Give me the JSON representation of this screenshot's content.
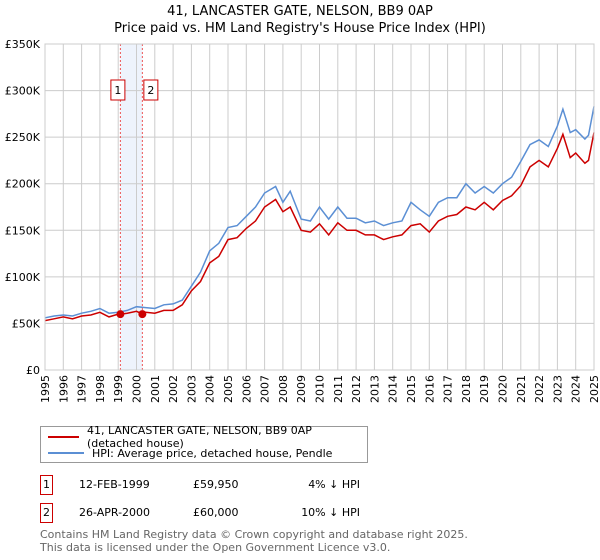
{
  "title_line1": "41, LANCASTER GATE, NELSON, BB9 0AP",
  "title_line2": "Price paid vs. HM Land Registry's House Price Index (HPI)",
  "chart_data": {
    "type": "line",
    "title": "41, LANCASTER GATE, NELSON, BB9 0AP — Price paid vs. HM Land Registry's House Price Index (HPI)",
    "xlabel": "",
    "ylabel": "",
    "xlim": [
      1995,
      2025.1
    ],
    "ylim": [
      0,
      350000
    ],
    "grid": true,
    "x_ticks": [
      "1995",
      "1996",
      "1997",
      "1998",
      "1999",
      "2000",
      "2001",
      "2002",
      "2003",
      "2004",
      "2005",
      "2006",
      "2007",
      "2008",
      "2009",
      "2010",
      "2011",
      "2012",
      "2013",
      "2014",
      "2015",
      "2016",
      "2017",
      "2018",
      "2019",
      "2020",
      "2021",
      "2022",
      "2023",
      "2024",
      "2025"
    ],
    "y_ticks": [
      "£0",
      "£50K",
      "£100K",
      "£150K",
      "£200K",
      "£250K",
      "£300K",
      "£350K"
    ],
    "y_tick_values": [
      0,
      50000,
      100000,
      150000,
      200000,
      250000,
      300000,
      350000
    ],
    "legend_position": "below",
    "series": [
      {
        "name": "41, LANCASTER GATE, NELSON, BB9 0AP (detached house)",
        "color": "#cc0000",
        "x": [
          1995,
          1995.5,
          1996,
          1996.5,
          1997,
          1997.5,
          1998,
          1998.5,
          1999,
          1999.12,
          1999.5,
          2000,
          2000.32,
          2000.5,
          2001,
          2001.5,
          2002,
          2002.5,
          2003,
          2003.5,
          2004,
          2004.5,
          2005,
          2005.5,
          2006,
          2006.5,
          2007,
          2007.6,
          2008,
          2008.4,
          2009,
          2009.5,
          2010,
          2010.5,
          2011,
          2011.5,
          2012,
          2012.5,
          2013,
          2013.5,
          2014,
          2014.5,
          2015,
          2015.5,
          2016,
          2016.5,
          2017,
          2017.5,
          2018,
          2018.5,
          2019,
          2019.5,
          2020,
          2020.5,
          2021,
          2021.5,
          2022,
          2022.5,
          2023,
          2023.3,
          2023.7,
          2024,
          2024.5,
          2024.7,
          2025
        ],
        "y": [
          53000,
          55000,
          57000,
          55000,
          58000,
          59000,
          62000,
          57000,
          60000,
          59950,
          61000,
          63000,
          60000,
          62000,
          61000,
          64000,
          64000,
          70000,
          85000,
          95000,
          115000,
          122000,
          140000,
          142000,
          152000,
          160000,
          175000,
          183000,
          170000,
          175000,
          150000,
          148000,
          157000,
          145000,
          158000,
          150000,
          150000,
          145000,
          145000,
          140000,
          143000,
          145000,
          155000,
          157000,
          148000,
          160000,
          165000,
          167000,
          175000,
          172000,
          180000,
          172000,
          182000,
          187000,
          198000,
          218000,
          225000,
          218000,
          238000,
          253000,
          228000,
          233000,
          222000,
          225000,
          255000
        ]
      },
      {
        "name": "HPI: Average price, detached house, Pendle",
        "color": "#5b8fd4",
        "x": [
          1995,
          1995.5,
          1996,
          1996.5,
          1997,
          1997.5,
          1998,
          1998.5,
          1999,
          1999.5,
          2000,
          2000.5,
          2001,
          2001.5,
          2002,
          2002.5,
          2003,
          2003.5,
          2004,
          2004.5,
          2005,
          2005.5,
          2006,
          2006.5,
          2007,
          2007.6,
          2008,
          2008.4,
          2009,
          2009.5,
          2010,
          2010.5,
          2011,
          2011.5,
          2012,
          2012.5,
          2013,
          2013.5,
          2014,
          2014.5,
          2015,
          2015.5,
          2016,
          2016.5,
          2017,
          2017.5,
          2018,
          2018.5,
          2019,
          2019.5,
          2020,
          2020.5,
          2021,
          2021.5,
          2022,
          2022.5,
          2023,
          2023.3,
          2023.7,
          2024,
          2024.5,
          2024.7,
          2025
        ],
        "y": [
          56000,
          58000,
          59000,
          58000,
          61000,
          63000,
          66000,
          61000,
          62000,
          64000,
          68000,
          67000,
          66000,
          70000,
          71000,
          75000,
          90000,
          105000,
          128000,
          136000,
          153000,
          155000,
          165000,
          175000,
          190000,
          197000,
          180000,
          192000,
          162000,
          160000,
          175000,
          162000,
          175000,
          163000,
          163000,
          158000,
          160000,
          155000,
          158000,
          160000,
          180000,
          172000,
          165000,
          180000,
          185000,
          185000,
          200000,
          190000,
          197000,
          190000,
          200000,
          207000,
          224000,
          242000,
          247000,
          240000,
          262000,
          280000,
          255000,
          258000,
          248000,
          252000,
          283000
        ]
      }
    ],
    "annotations": [
      {
        "label": "1",
        "x": 1999.12,
        "value": 59950
      },
      {
        "label": "2",
        "x": 2000.32,
        "value": 60000
      }
    ]
  },
  "legend": {
    "property": "41, LANCASTER GATE, NELSON, BB9 0AP (detached house)",
    "hpi": "HPI: Average price, detached house, Pendle"
  },
  "transactions": [
    {
      "num": "1",
      "date": "12-FEB-1999",
      "price": "£59,950",
      "hpi": "4% ↓ HPI"
    },
    {
      "num": "2",
      "date": "26-APR-2000",
      "price": "£60,000",
      "hpi": "10% ↓ HPI"
    }
  ],
  "footer_line1": "Contains HM Land Registry data © Crown copyright and database right 2025.",
  "footer_line2": "This data is licensed under the Open Government Licence v3.0."
}
